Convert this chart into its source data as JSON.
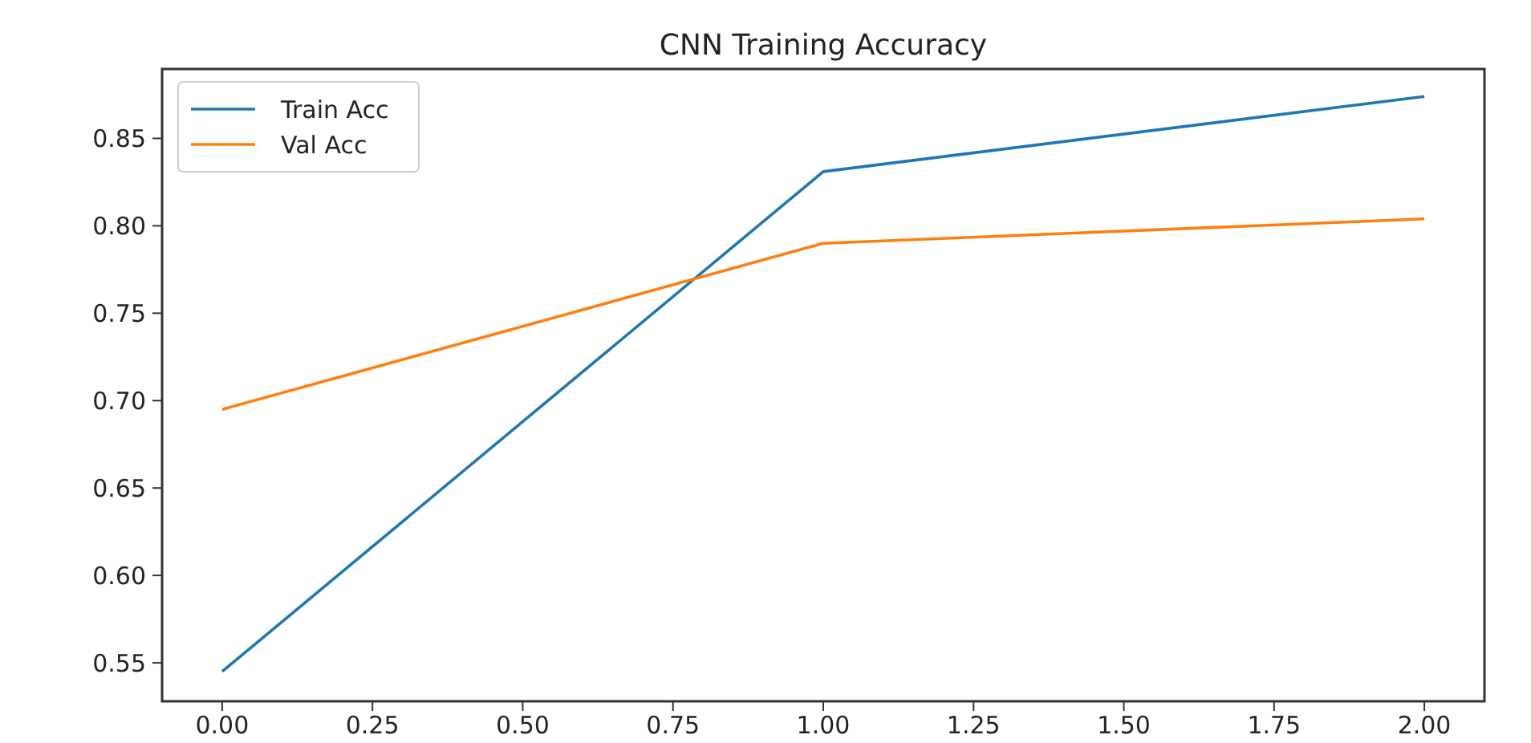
{
  "chart_data": {
    "type": "line",
    "title": "CNN Training Accuracy",
    "x": [
      0,
      1,
      2
    ],
    "series": [
      {
        "name": "Train Acc",
        "color": "#1f77b4",
        "values": [
          0.545,
          0.831,
          0.874
        ]
      },
      {
        "name": "Val Acc",
        "color": "#ff7f0e",
        "values": [
          0.695,
          0.79,
          0.804
        ]
      }
    ],
    "xlim": [
      -0.1,
      2.1
    ],
    "xticks": [
      {
        "value": 0,
        "label": "0.00"
      },
      {
        "value": 0.25,
        "label": "0.25"
      },
      {
        "value": 0.5,
        "label": "0.50"
      },
      {
        "value": 0.75,
        "label": "0.75"
      },
      {
        "value": 1,
        "label": "1.00"
      },
      {
        "value": 1.25,
        "label": "1.25"
      },
      {
        "value": 1.5,
        "label": "1.50"
      },
      {
        "value": 1.75,
        "label": "1.75"
      },
      {
        "value": 2,
        "label": "2.00"
      }
    ],
    "ylim": [
      0.528,
      0.8897
    ],
    "yticks": [
      0.55,
      {
        "value": 0.6,
        "label": "0.60"
      },
      0.65,
      {
        "value": 0.7,
        "label": "0.70"
      },
      0.75,
      {
        "value": 0.8,
        "label": "0.80"
      },
      0.85
    ],
    "legend": "top left",
    "grid": false
  }
}
